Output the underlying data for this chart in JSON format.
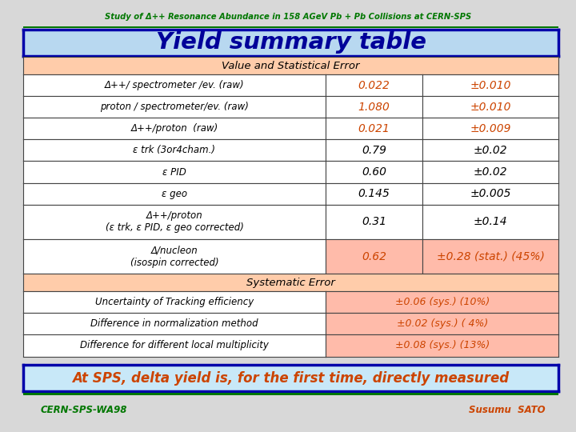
{
  "title_top": "Study of Δ++ Resonance Abundance in 158 AGeV Pb + Pb Collisions at CERN-SPS",
  "title_main": "Yield summary table",
  "section1_header": "Value and Statistical Error",
  "section2_header": "Systematic Error",
  "footer_left": "CERN-SPS-WA98",
  "footer_right": "Susumu  SATO",
  "bottom_text": "At SPS, delta yield is, for the first time, directly measured",
  "stat_labels": [
    "Δ++/ spectrometer /ev. (raw)",
    "proton / spectrometer/ev. (raw)",
    "Δ++/proton  (raw)",
    "ε trk (3or4cham.)",
    "ε PID",
    "ε geo",
    "Δ++/proton\n(ε trk, ε PID, ε geo corrected)",
    "Δ/nucleon\n(isospin corrected)"
  ],
  "stat_values": [
    "0.022",
    "1.080",
    "0.021",
    "0.79",
    "0.60",
    "0.145",
    "0.31",
    "0.62"
  ],
  "stat_errors": [
    "±0.010",
    "±0.010",
    "±0.009",
    "±0.02",
    "±0.02",
    "±0.005",
    "±0.14",
    "±0.28 (stat.) (45%)"
  ],
  "sys_labels": [
    "Uncertainty of Tracking efficiency",
    "Difference in normalization method",
    "Difference for different local multiplicity"
  ],
  "sys_errors": [
    "±0.06 (sys.) (10%)",
    "±0.02 (sys.) ( 4%)",
    "±0.08 (sys.) (13%)"
  ],
  "color_orange": "#CC4400",
  "color_green": "#007700",
  "color_blue_dark": "#000099",
  "bg_header": "#FFCCAA",
  "bg_highlight": "#FFBBAA",
  "bg_white": "#FFFFFF",
  "bg_title": "#B8D8F0",
  "bg_bottom": "#C8E8F8",
  "bg_figure": "#D8D8D8",
  "border_blue": "#0000AA",
  "border_dark": "#444444",
  "row_weights": [
    0.8,
    1.0,
    1.0,
    1.0,
    1.0,
    1.0,
    1.0,
    1.6,
    1.6,
    0.8,
    1.0,
    1.0,
    1.0
  ],
  "col_split1": 0.565,
  "col_split2": 0.745
}
